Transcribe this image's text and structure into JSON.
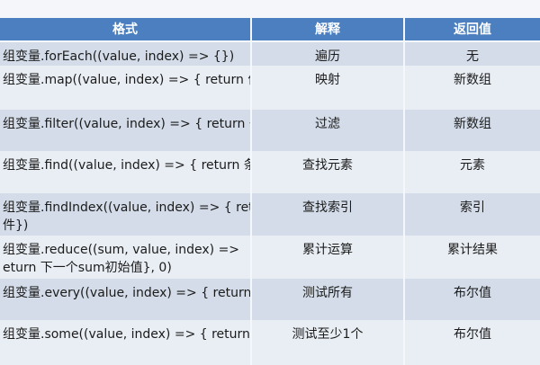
{
  "table": {
    "headers": [
      "格式",
      "解释",
      "返回值"
    ],
    "rows": [
      {
        "format": [
          "组变量.forEach((value, index) => {})"
        ],
        "explain": "遍历",
        "returns": "无"
      },
      {
        "format": [
          "组变量.map((value, index) => { return 值})"
        ],
        "explain": "映射",
        "returns": "新数组"
      },
      {
        "format": [
          "组变量.filter((value, index) => { return 条件})"
        ],
        "explain": "过滤",
        "returns": "新数组"
      },
      {
        "format": [
          "组变量.find((value, index) => { return 条件})"
        ],
        "explain": "查找元素",
        "returns": "元素"
      },
      {
        "format": [
          "组变量.findIndex((value, index) => { return",
          "件})"
        ],
        "explain": "查找索引",
        "returns": "索引"
      },
      {
        "format": [
          "组变量.reduce((sum, value, index) =>",
          "eturn 下一个sum初始值}, 0)"
        ],
        "explain": "累计运算",
        "returns": "累计结果"
      },
      {
        "format": [
          "组变量.every((value, index) => { return 条件})"
        ],
        "explain": "测试所有",
        "returns": "布尔值"
      },
      {
        "format": [
          "组变量.some((value, index) => { return 条件})"
        ],
        "explain": "测试至少1个",
        "returns": "布尔值"
      }
    ]
  },
  "colors": {
    "header": "#4b7fc0",
    "row_dark": "#d3dce8",
    "row_light": "#e9eef4"
  }
}
